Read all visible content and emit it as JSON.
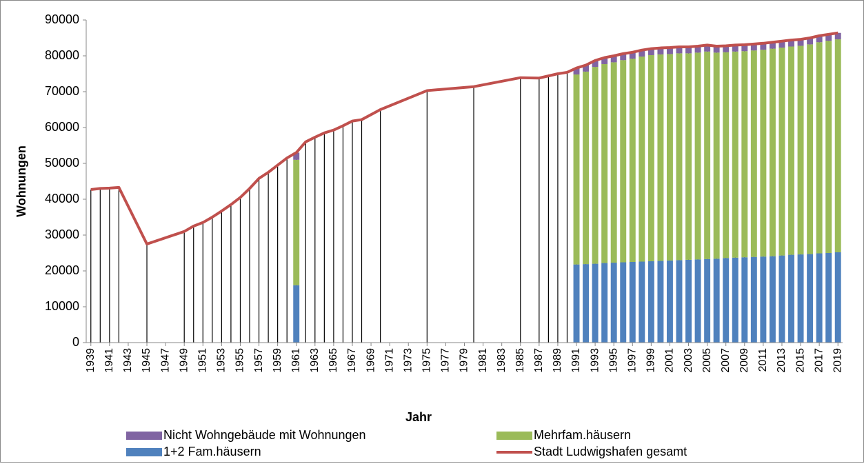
{
  "chart_data": {
    "type": "stacked-bar-line",
    "x_label": "Jahr",
    "y_label": "Wohnungen",
    "xlim": [
      1938.5,
      2019.5
    ],
    "xticks": [
      1939,
      1941,
      1943,
      1945,
      1947,
      1949,
      1951,
      1953,
      1955,
      1957,
      1959,
      1961,
      1963,
      1965,
      1967,
      1969,
      1971,
      1973,
      1975,
      1977,
      1979,
      1981,
      1983,
      1985,
      1987,
      1989,
      1991,
      1993,
      1995,
      1997,
      1999,
      2001,
      2003,
      2005,
      2007,
      2009,
      2011,
      2013,
      2015,
      2017,
      2019
    ],
    "ylim": [
      0,
      90000
    ],
    "yticks": [
      0,
      10000,
      20000,
      30000,
      40000,
      50000,
      60000,
      70000,
      80000,
      90000
    ],
    "grid": false,
    "drop_lines": true,
    "legend": "bottom",
    "series": [
      {
        "name": "Nicht Wohngebäude mit Wohnungen",
        "kind": "bar",
        "color": "#8064a2",
        "x": [
          1961,
          1991,
          1992,
          1993,
          1994,
          1995,
          1996,
          1997,
          1998,
          1999,
          2000,
          2001,
          2002,
          2003,
          2004,
          2005,
          2006,
          2007,
          2008,
          2009,
          2010,
          2011,
          2012,
          2013,
          2014,
          2015,
          2016,
          2017,
          2018,
          2019
        ],
        "values": [
          2000,
          1800,
          1800,
          1800,
          1800,
          1800,
          1800,
          1800,
          1800,
          1800,
          1800,
          1800,
          1800,
          1800,
          1800,
          1800,
          1800,
          1800,
          1800,
          1800,
          1800,
          1800,
          1800,
          1800,
          1800,
          1800,
          1800,
          1800,
          1800,
          1800
        ]
      },
      {
        "name": "Mehrfam.häusern",
        "kind": "bar",
        "color": "#9bbb59",
        "x": [
          1961,
          1991,
          1992,
          1993,
          1994,
          1995,
          1996,
          1997,
          1998,
          1999,
          2000,
          2001,
          2002,
          2003,
          2004,
          2005,
          2006,
          2007,
          2008,
          2009,
          2010,
          2011,
          2012,
          2013,
          2014,
          2015,
          2016,
          2017,
          2018,
          2019
        ],
        "values": [
          35000,
          53000,
          53700,
          54900,
          55500,
          55900,
          56400,
          56700,
          57200,
          57500,
          57600,
          57600,
          57700,
          57600,
          57700,
          57900,
          57500,
          57400,
          57500,
          57500,
          57600,
          57700,
          57900,
          58000,
          58100,
          58200,
          58500,
          58900,
          59200,
          59400
        ]
      },
      {
        "name": "1+2 Fam.häusern",
        "kind": "bar",
        "color": "#4f81bd",
        "x": [
          1961,
          1991,
          1992,
          1993,
          1994,
          1995,
          1996,
          1997,
          1998,
          1999,
          2000,
          2001,
          2002,
          2003,
          2004,
          2005,
          2006,
          2007,
          2008,
          2009,
          2010,
          2011,
          2012,
          2013,
          2014,
          2015,
          2016,
          2017,
          2018,
          2019
        ],
        "values": [
          16000,
          21800,
          21900,
          22000,
          22200,
          22300,
          22400,
          22500,
          22600,
          22700,
          22800,
          22900,
          23000,
          23100,
          23200,
          23300,
          23400,
          23600,
          23700,
          23800,
          23900,
          24000,
          24100,
          24300,
          24500,
          24600,
          24700,
          24900,
          25000,
          25200
        ]
      },
      {
        "name": "Stadt Ludwigshafen gesamt",
        "kind": "line",
        "color": "#c0504d",
        "x": [
          1939,
          1940,
          1941,
          1942,
          1945,
          1949,
          1950,
          1951,
          1952,
          1953,
          1954,
          1955,
          1956,
          1957,
          1958,
          1959,
          1960,
          1961,
          1962,
          1963,
          1964,
          1965,
          1966,
          1967,
          1968,
          1970,
          1975,
          1980,
          1985,
          1987,
          1988,
          1989,
          1990,
          1991,
          1992,
          1993,
          1994,
          1995,
          1996,
          1997,
          1998,
          1999,
          2000,
          2001,
          2002,
          2003,
          2004,
          2005,
          2006,
          2007,
          2008,
          2009,
          2010,
          2011,
          2012,
          2013,
          2014,
          2015,
          2016,
          2017,
          2018,
          2019
        ],
        "values": [
          42700,
          43000,
          43100,
          43300,
          27500,
          31000,
          32500,
          33500,
          35000,
          36700,
          38500,
          40500,
          43000,
          45800,
          47500,
          49500,
          51500,
          53000,
          56000,
          57300,
          58500,
          59300,
          60500,
          61800,
          62200,
          65000,
          70300,
          71400,
          73900,
          73800,
          74400,
          75000,
          75400,
          76600,
          77400,
          78700,
          79500,
          80000,
          80600,
          81000,
          81600,
          82000,
          82200,
          82300,
          82500,
          82500,
          82700,
          83000,
          82700,
          82800,
          83000,
          83100,
          83300,
          83500,
          83800,
          84100,
          84400,
          84600,
          85000,
          85600,
          86000,
          86400
        ]
      }
    ]
  }
}
